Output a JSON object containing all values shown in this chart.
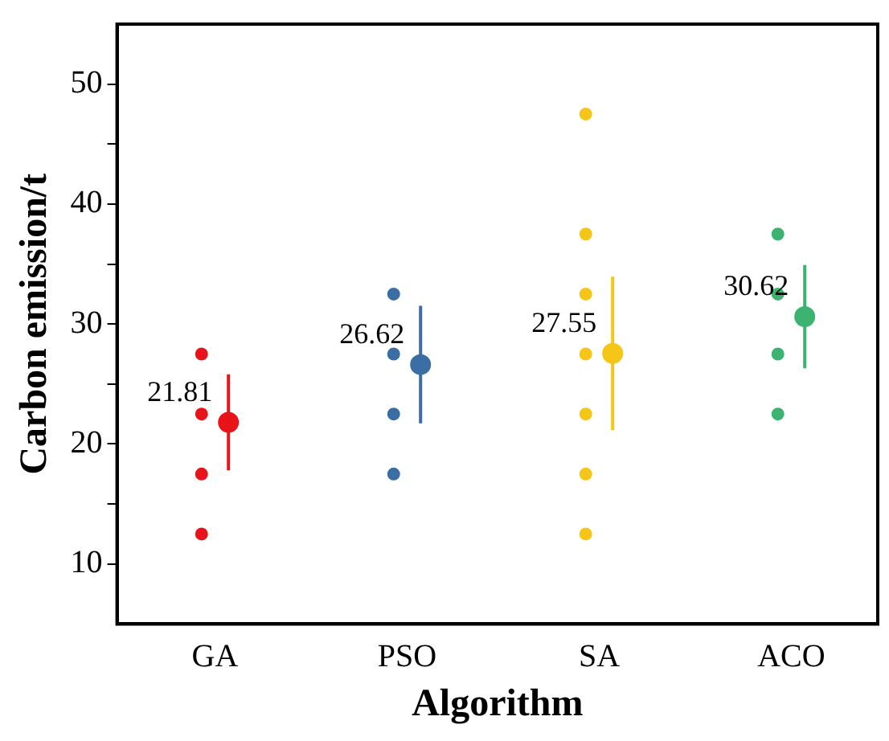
{
  "chart_data": {
    "type": "scatter",
    "xlabel": "Algorithm",
    "ylabel": "Carbon emission/t",
    "categories": [
      "GA",
      "PSO",
      "SA",
      "ACO"
    ],
    "ylim": [
      5,
      55
    ],
    "yticks": [
      {
        "value": 10,
        "label": "10"
      },
      {
        "value": 15,
        "label": null
      },
      {
        "value": 20,
        "label": "20"
      },
      {
        "value": 25,
        "label": null
      },
      {
        "value": 30,
        "label": "30"
      },
      {
        "value": 35,
        "label": null
      },
      {
        "value": 40,
        "label": "40"
      },
      {
        "value": 45,
        "label": null
      },
      {
        "value": 50,
        "label": "50"
      }
    ],
    "grid": false,
    "legend": false,
    "marker": "circle",
    "series": [
      {
        "values": [
          21.81,
          26.62,
          27.55,
          30.62
        ],
        "errors": [
          4.0,
          4.9,
          6.4,
          4.3
        ],
        "value_labels": [
          "21.81",
          "26.62",
          "27.55",
          "30.62"
        ],
        "colors": [
          "#e8141a",
          "#3a6ea5",
          "#f5c518",
          "#3cb371"
        ]
      },
      {
        "x": [
          "GA",
          "GA",
          "GA",
          "GA",
          "PSO",
          "PSO",
          "PSO",
          "PSO",
          "SA",
          "SA",
          "SA",
          "SA",
          "SA",
          "SA",
          "SA",
          "ACO",
          "ACO",
          "ACO",
          "ACO"
        ],
        "values": [
          12.5,
          17.5,
          22.5,
          27.5,
          17.5,
          22.5,
          27.5,
          32.5,
          12.5,
          17.5,
          22.5,
          27.5,
          32.5,
          37.5,
          47.5,
          22.5,
          27.5,
          32.5,
          37.5
        ],
        "colors": [
          "#e8141a",
          "#e8141a",
          "#e8141a",
          "#e8141a",
          "#3a6ea5",
          "#3a6ea5",
          "#3a6ea5",
          "#3a6ea5",
          "#f5c518",
          "#f5c518",
          "#f5c518",
          "#f5c518",
          "#f5c518",
          "#f5c518",
          "#f5c518",
          "#3cb371",
          "#3cb371",
          "#3cb371",
          "#3cb371"
        ]
      }
    ]
  }
}
